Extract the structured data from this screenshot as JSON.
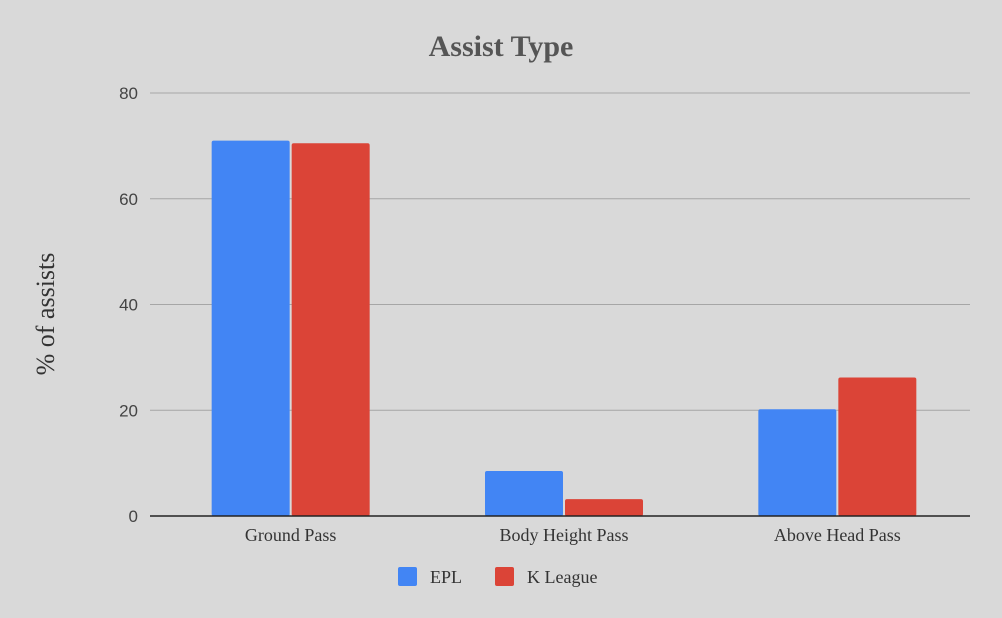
{
  "chart_data": {
    "type": "bar",
    "title": "Assist Type",
    "xlabel": "",
    "ylabel": "% of assists",
    "categories": [
      "Ground Pass",
      "Body Height Pass",
      "Above Head Pass"
    ],
    "series": [
      {
        "name": "EPL",
        "color": "#4285f4",
        "values": [
          71,
          8.5,
          20.2
        ]
      },
      {
        "name": "K League",
        "color": "#db4437",
        "values": [
          70.5,
          3.2,
          26.2
        ]
      }
    ],
    "ylim": [
      0,
      80
    ],
    "yticks": [
      "0",
      "20",
      "40",
      "60",
      "80"
    ],
    "grid": true,
    "legend_position": "bottom"
  }
}
